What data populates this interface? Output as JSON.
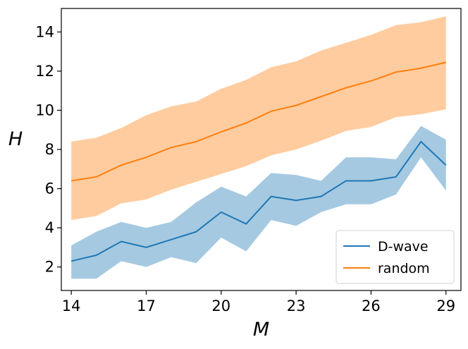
{
  "chart_data": {
    "type": "line",
    "title": "",
    "xlabel": "M",
    "ylabel": "H",
    "xlim": [
      13.6,
      29.6
    ],
    "ylim": [
      0.8,
      15.2
    ],
    "xticks": [
      14,
      17,
      20,
      23,
      26,
      29
    ],
    "yticks": [
      2,
      4,
      6,
      8,
      10,
      12,
      14
    ],
    "grid": false,
    "legend_position": "lower-right",
    "x": [
      14,
      15,
      16,
      17,
      18,
      19,
      20,
      21,
      22,
      23,
      24,
      25,
      26,
      27,
      28,
      29
    ],
    "series": [
      {
        "name": "D-wave",
        "color": "#1f77b4",
        "values": [
          2.3,
          2.6,
          3.3,
          3.0,
          3.4,
          3.8,
          4.8,
          4.2,
          5.6,
          5.4,
          5.6,
          6.4,
          6.4,
          6.6,
          8.4,
          7.2
        ],
        "band_upper": [
          3.1,
          3.8,
          4.3,
          4.0,
          4.3,
          5.3,
          6.1,
          5.6,
          6.8,
          6.7,
          6.4,
          7.6,
          7.6,
          7.5,
          9.2,
          8.5
        ],
        "band_lower": [
          1.4,
          1.4,
          2.3,
          2.0,
          2.5,
          2.2,
          3.5,
          2.8,
          4.4,
          4.1,
          4.8,
          5.2,
          5.2,
          5.7,
          7.6,
          5.9
        ]
      },
      {
        "name": "random",
        "color": "#ff7f0e",
        "values": [
          6.4,
          6.6,
          7.2,
          7.6,
          8.1,
          8.4,
          8.9,
          9.35,
          9.95,
          10.25,
          10.7,
          11.15,
          11.5,
          11.95,
          12.15,
          12.45
        ],
        "band_upper": [
          8.4,
          8.6,
          9.1,
          9.75,
          10.2,
          10.45,
          11.1,
          11.55,
          12.2,
          12.5,
          13.05,
          13.45,
          13.85,
          14.35,
          14.5,
          14.8
        ],
        "band_lower": [
          4.4,
          4.6,
          5.25,
          5.45,
          5.95,
          6.35,
          6.75,
          7.15,
          7.7,
          8.0,
          8.45,
          8.95,
          9.15,
          9.65,
          9.8,
          10.05
        ]
      }
    ]
  }
}
